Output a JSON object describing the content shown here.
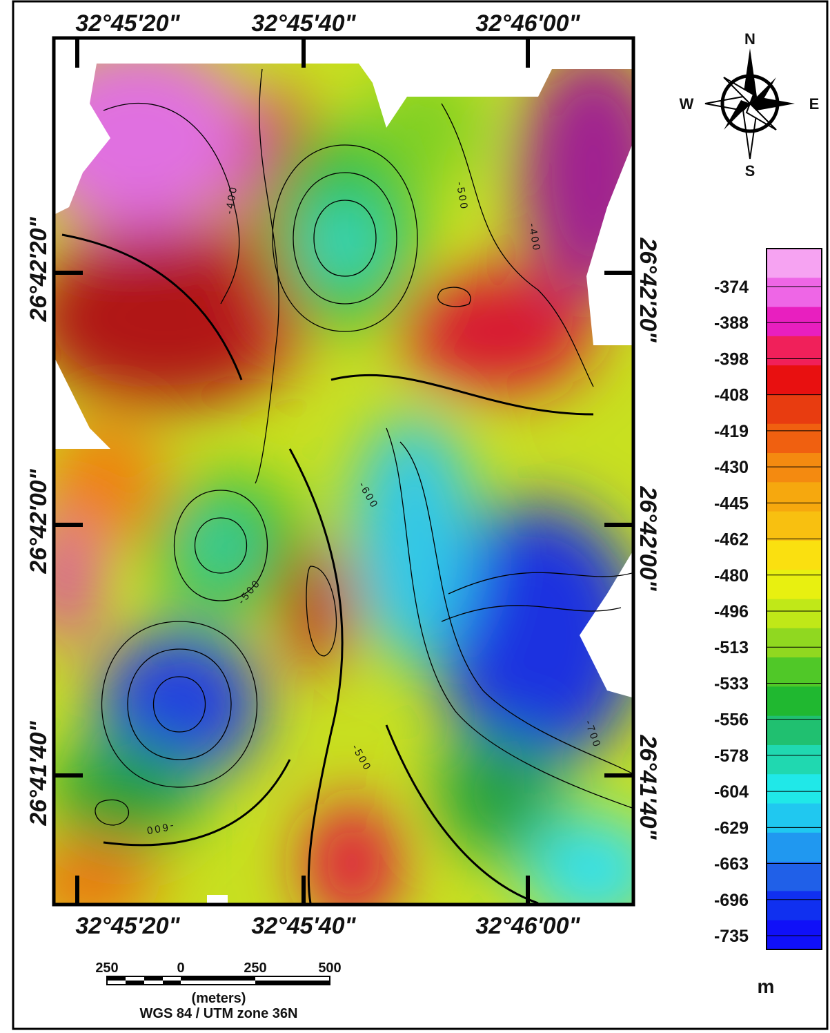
{
  "map": {
    "top_labels": [
      "32°45'20\"",
      "32°45'40\"",
      "32°46'00\""
    ],
    "bottom_labels": [
      "32°45'20\"",
      "32°45'40\"",
      "32°46'00\""
    ],
    "left_labels": [
      "26°42'20\"",
      "26°42'00\"",
      "26°41'40\""
    ],
    "right_labels": [
      "26°42'20\"",
      "26°42'00\"",
      "26°41'40\""
    ],
    "contour_labels": [
      "-400",
      "-500",
      "-400",
      "-600",
      "-500",
      "-700",
      "-500",
      "-600"
    ]
  },
  "compass": {
    "north": "N",
    "south": "S",
    "east": "E",
    "west": "W"
  },
  "legend": {
    "values": [
      -374,
      -388,
      -398,
      -408,
      -419,
      -430,
      -445,
      -462,
      -480,
      -496,
      -513,
      -533,
      -556,
      -578,
      -604,
      -629,
      -663,
      -696,
      -735
    ],
    "colors": [
      "#f6a3f2",
      "#ee66e6",
      "#e81fbf",
      "#f0205a",
      "#e81010",
      "#e83c10",
      "#f06010",
      "#f48a10",
      "#f6a80e",
      "#f8c010",
      "#fae010",
      "#e8f010",
      "#c0e818",
      "#90d820",
      "#50c828",
      "#20b830",
      "#20c070",
      "#20d8b0",
      "#20e8e8",
      "#20c8f0",
      "#2098f0",
      "#2060e8",
      "#1030f0",
      "#1010f8"
    ],
    "unit": "m"
  },
  "scale_bar": {
    "labels": [
      250,
      0,
      250,
      500
    ],
    "unit": "(meters)",
    "projection": "WGS 84 / UTM zone 36N"
  }
}
